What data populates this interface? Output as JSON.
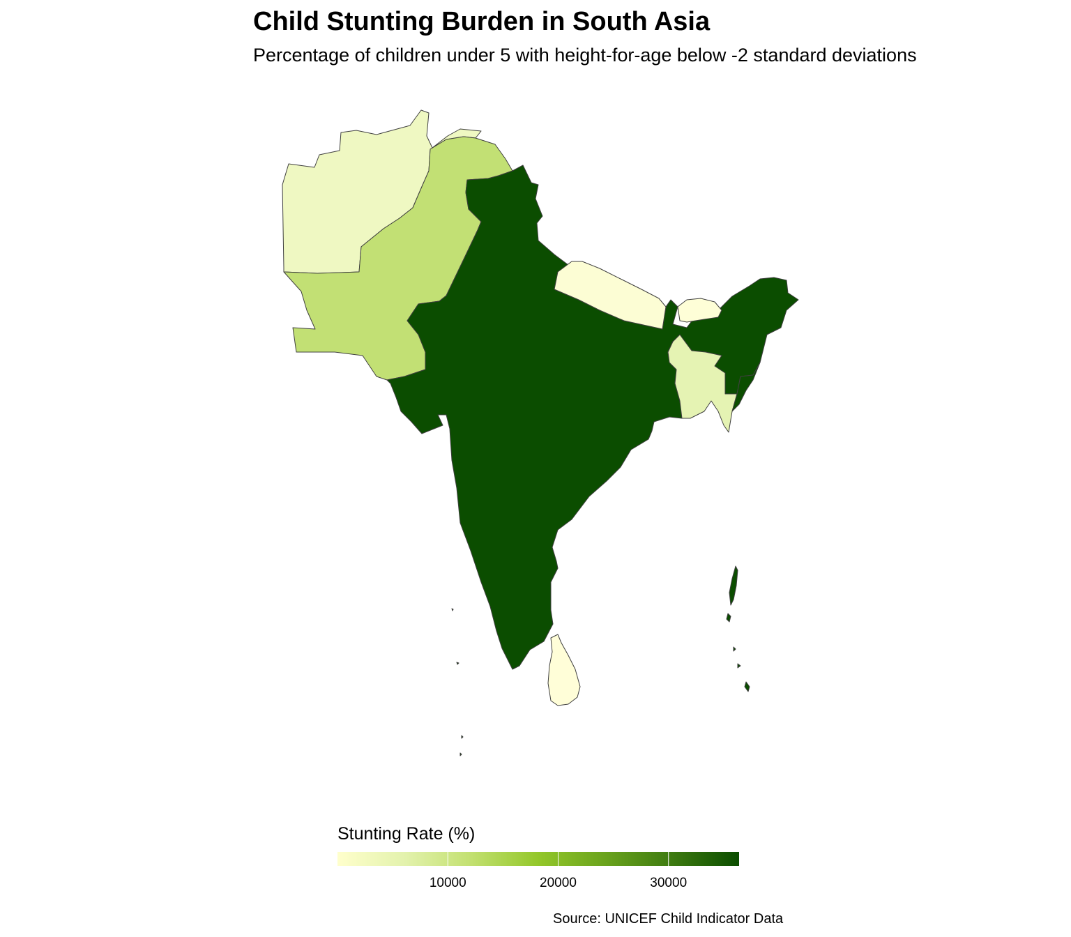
{
  "title": "Child Stunting Burden in South Asia",
  "subtitle": "Percentage of children under 5 with height-for-age below -2 standard deviations",
  "caption": "Source: UNICEF Child Indicator Data",
  "legend": {
    "title": "Stunting Rate (%)",
    "min": 0,
    "max": 36400,
    "ticks": [
      10000,
      20000,
      30000
    ],
    "tick_labels": [
      "10000",
      "20000",
      "30000"
    ],
    "colors": [
      "#ffffcc",
      "#e3f2ad",
      "#c2e070",
      "#93c72a",
      "#6aa31d",
      "#3d7a10",
      "#0b4d00"
    ]
  },
  "countries": [
    {
      "name": "Afghanistan",
      "color": "#eff8c2"
    },
    {
      "name": "Pakistan",
      "color": "#c2e074"
    },
    {
      "name": "India",
      "color": "#0b4d00"
    },
    {
      "name": "Nepal",
      "color": "#fcfdd4"
    },
    {
      "name": "Bhutan",
      "color": "#fefed7"
    },
    {
      "name": "Bangladesh",
      "color": "#e5f3b3"
    },
    {
      "name": "Myanmar (west)",
      "color": "#0b4d00"
    },
    {
      "name": "Sri Lanka",
      "color": "#fffed8"
    },
    {
      "name": "Andaman and Nicobar Islands",
      "color": "#0b4d00"
    },
    {
      "name": "Lakshadweep",
      "color": "#0b4d00"
    },
    {
      "name": "Maldives",
      "color": "#0b4d00"
    }
  ]
}
